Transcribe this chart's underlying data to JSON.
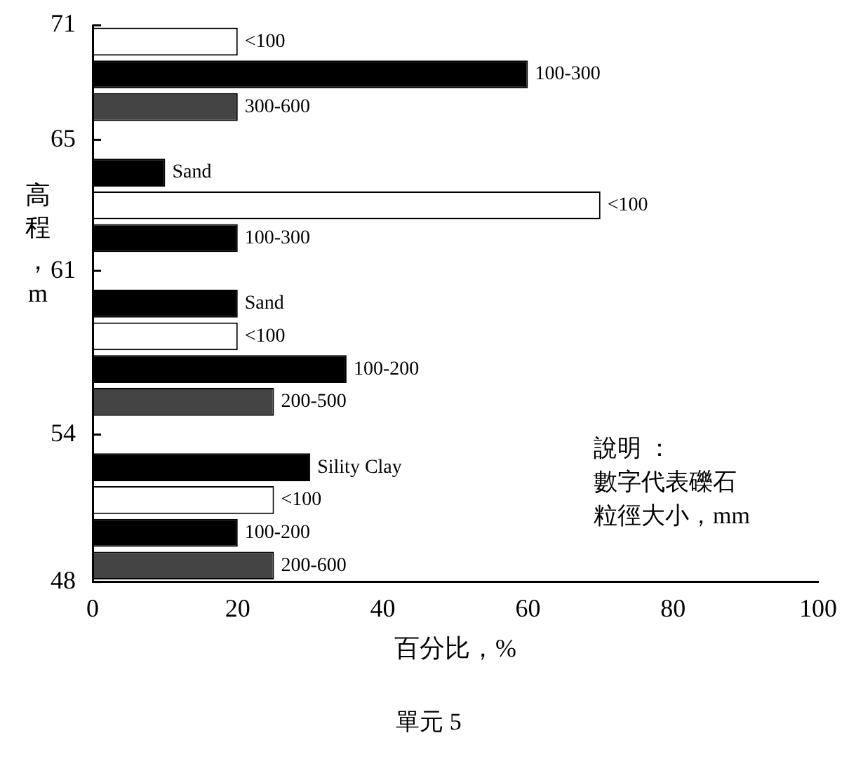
{
  "chart_data": {
    "type": "bar",
    "orientation": "horizontal",
    "title": "單元 5",
    "xlabel": "百分比，%",
    "ylabel": "高程，m",
    "categories": [
      "<100",
      "100-300",
      "300-600",
      null,
      "Sand",
      "<100",
      "100-300",
      null,
      "Sand",
      "<100",
      "100-200",
      "200-500",
      null,
      "Sility Clay",
      "<100",
      "100-200",
      "200-600"
    ],
    "values": [
      20,
      60,
      20,
      null,
      10,
      70,
      20,
      null,
      20,
      20,
      35,
      25,
      null,
      30,
      25,
      20,
      25
    ],
    "colors": [
      "#ffffff",
      "#000000",
      "#444444",
      null,
      "#000000",
      "#ffffff",
      "#000000",
      null,
      "#000000",
      "#ffffff",
      "#000000",
      "#444444",
      null,
      "#000000",
      "#ffffff",
      "#000000",
      "#444444"
    ],
    "xlim": [
      0,
      100
    ],
    "xticks": [
      0,
      20,
      40,
      60,
      80,
      100
    ],
    "annotations": [
      "71",
      "65",
      "61",
      "54",
      "48",
      "說明 ：",
      "數字代表礫石",
      "粒徑大小，mm"
    ]
  }
}
